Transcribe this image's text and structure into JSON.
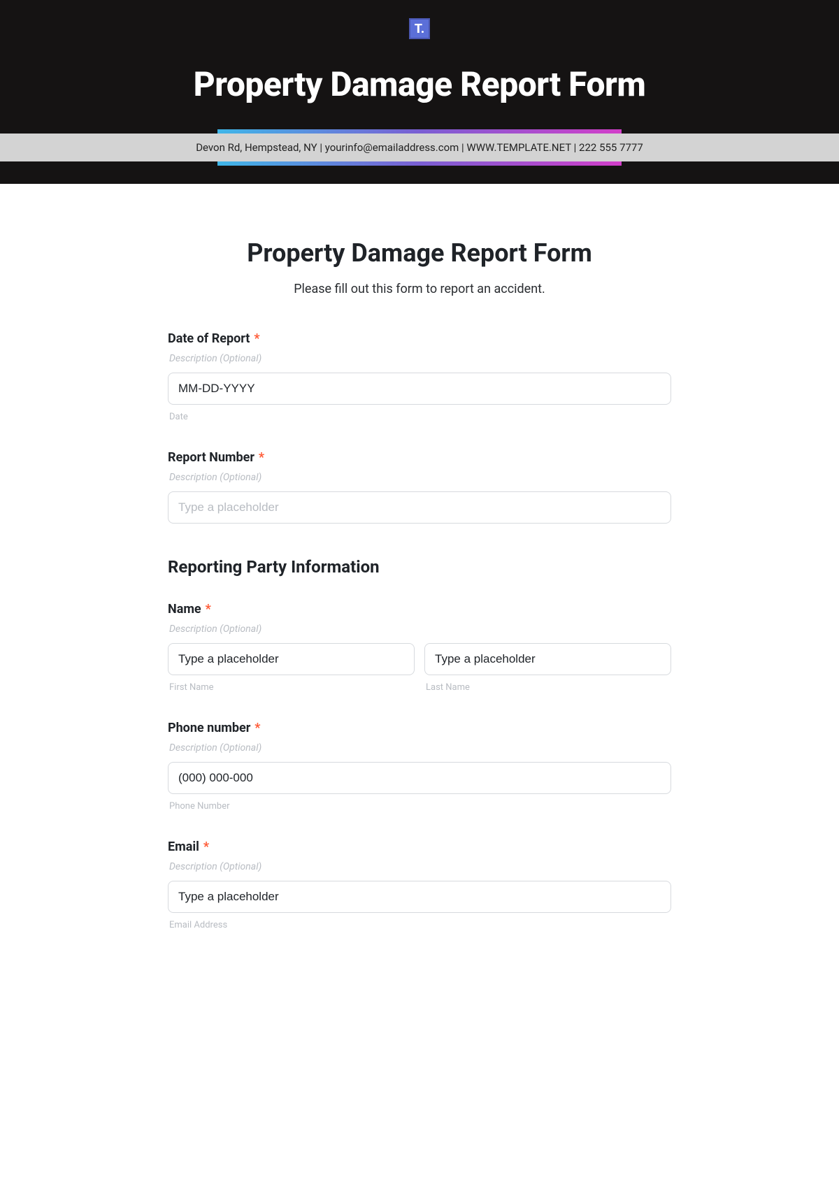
{
  "header": {
    "logo_text": "T.",
    "title": "Property Damage Report Form",
    "info_line": "Devon Rd, Hempstead, NY | yourinfo@emailaddress.com | WWW.TEMPLATE.NET | 222 555 7777",
    "gradient_colors": [
      "#3fb6e8",
      "#7a5fd3",
      "#d23ec9"
    ],
    "dark_bg": "#151313",
    "strip_bg": "#d3d3d3"
  },
  "form": {
    "title": "Property Damage Report Form",
    "subtitle": "Please fill out this form to report an accident.",
    "desc_placeholder": "Description (Optional)",
    "required_mark": "*",
    "fields": {
      "date_of_report": {
        "label": "Date of Report",
        "placeholder": "MM-DD-YYYY",
        "sublabel": "Date"
      },
      "report_number": {
        "label": "Report Number",
        "placeholder": "Type a placeholder"
      },
      "section_reporting": "Reporting Party Information",
      "name": {
        "label": "Name",
        "first_placeholder": "Type a placeholder",
        "last_placeholder": "Type a placeholder",
        "first_sublabel": "First Name",
        "last_sublabel": "Last Name"
      },
      "phone": {
        "label": "Phone number",
        "placeholder": "(000) 000-000",
        "sublabel": "Phone Number"
      },
      "email": {
        "label": "Email",
        "placeholder": "Type a placeholder",
        "sublabel": "Email Address"
      }
    }
  }
}
